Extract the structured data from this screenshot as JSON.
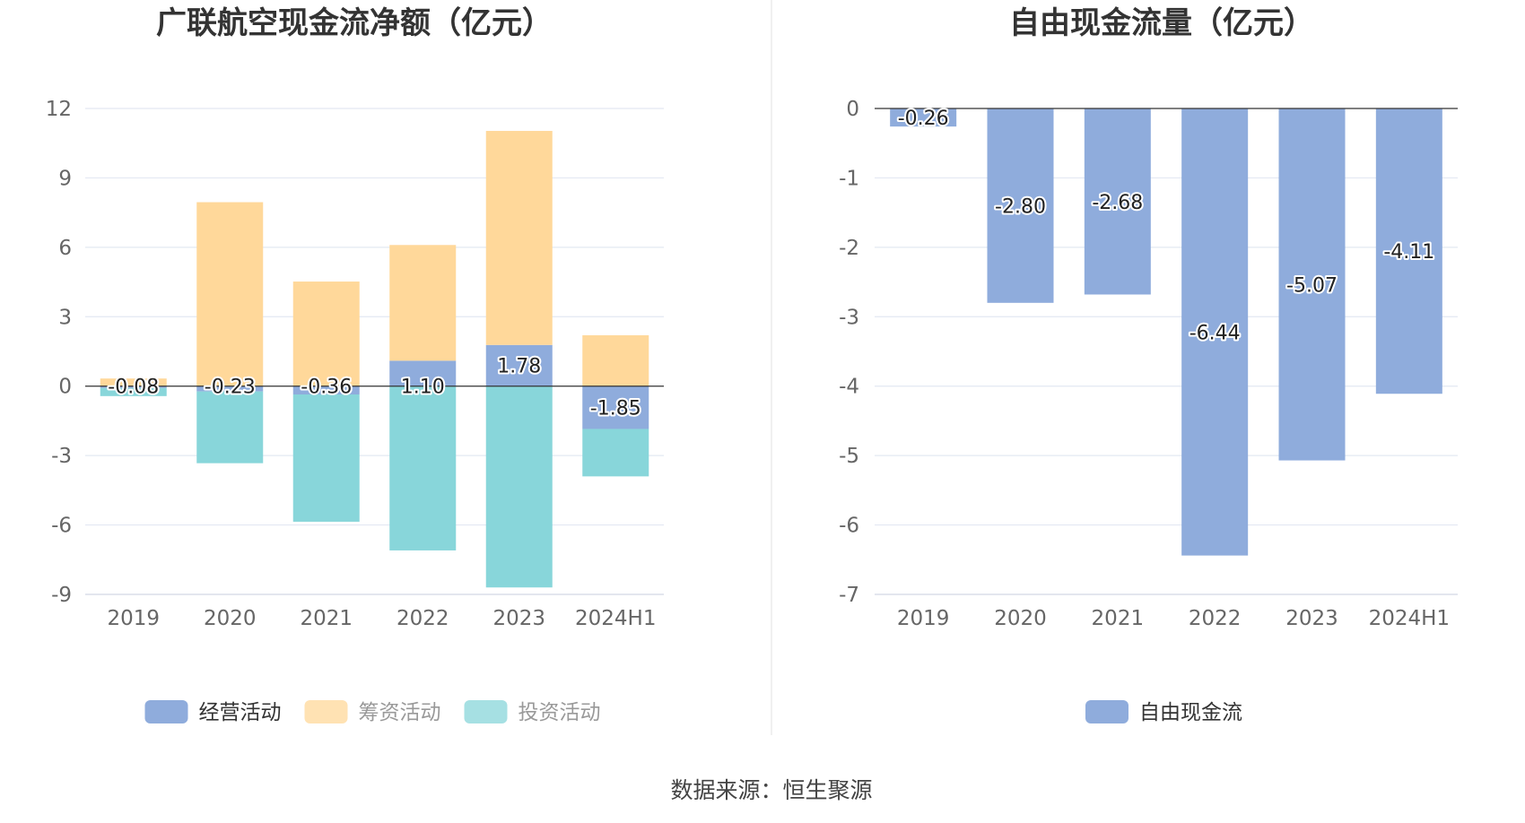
{
  "chart_data": [
    {
      "type": "bar",
      "stacked": true,
      "title": "广联航空现金流净额（亿元）",
      "categories": [
        "2019",
        "2020",
        "2021",
        "2022",
        "2023",
        "2024H1"
      ],
      "series": [
        {
          "name": "经营活动",
          "color": "#8facdc",
          "values": [
            -0.08,
            -0.23,
            -0.36,
            1.1,
            1.78,
            -1.85
          ]
        },
        {
          "name": "筹资活动",
          "color": "#ffd89a",
          "values": [
            0.33,
            7.95,
            4.52,
            5.0,
            9.25,
            2.2
          ]
        },
        {
          "name": "投资活动",
          "color": "#88d6da",
          "values": [
            -0.35,
            -3.1,
            -5.5,
            -7.1,
            -8.7,
            -2.05
          ]
        }
      ],
      "data_labels": [
        "-0.08",
        "-0.23",
        "-0.36",
        "1.10",
        "1.78",
        "-1.85"
      ],
      "ylim": [
        -9,
        12
      ],
      "yticks": [
        "12",
        "9",
        "6",
        "3",
        "0",
        "-3",
        "-6",
        "-9"
      ],
      "grid": true,
      "legend_position": "bottom"
    },
    {
      "type": "bar",
      "title": "自由现金流量（亿元）",
      "categories": [
        "2019",
        "2020",
        "2021",
        "2022",
        "2023",
        "2024H1"
      ],
      "series": [
        {
          "name": "自由现金流",
          "color": "#8facdc",
          "values": [
            -0.26,
            -2.8,
            -2.68,
            -6.44,
            -5.07,
            -4.11
          ]
        }
      ],
      "data_labels": [
        "-0.26",
        "-2.80",
        "-2.68",
        "-6.44",
        "-5.07",
        "-4.11"
      ],
      "ylim": [
        -7,
        0
      ],
      "yticks": [
        "0",
        "-1",
        "-2",
        "-3",
        "-4",
        "-5",
        "-6",
        "-7"
      ],
      "grid": true,
      "legend_position": "bottom"
    }
  ],
  "source_text": "数据来源：恒生聚源",
  "colors": {
    "legend_inactive_text": "#999999",
    "legend_active_text": "#333333",
    "gridline": "#e3e8f2",
    "axis": "#333333"
  }
}
